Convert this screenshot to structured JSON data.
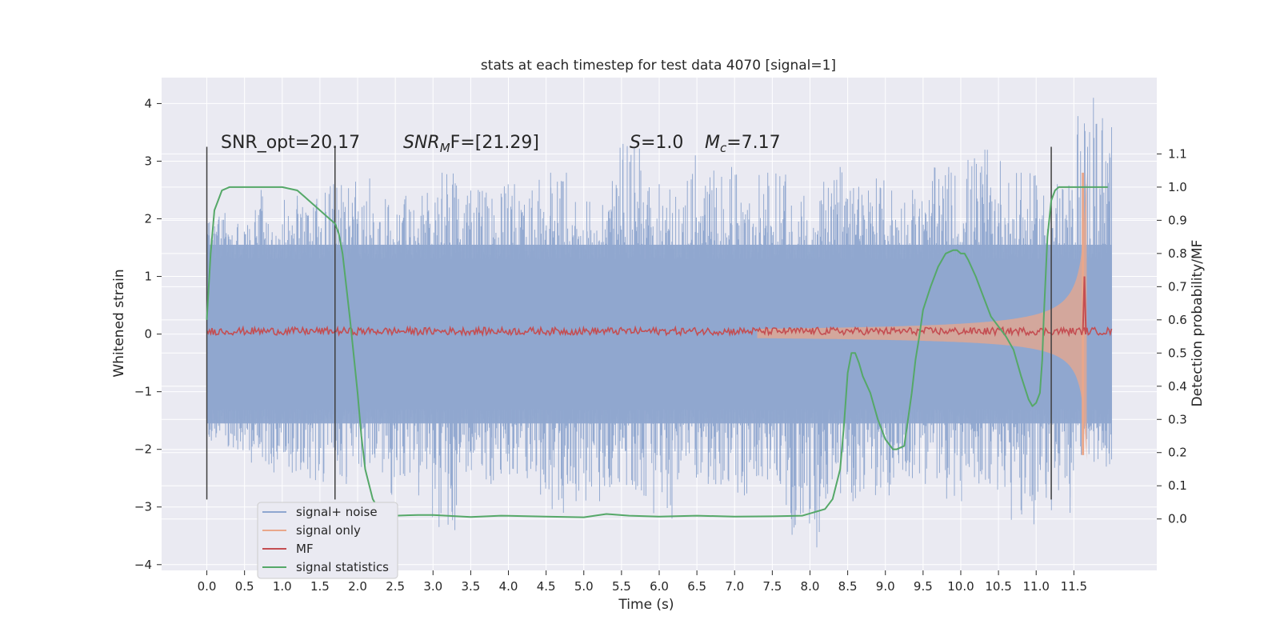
{
  "chart_data": {
    "type": "line",
    "title": "stats at each timestep for test data 4070 [signal=1]",
    "xlabel": "Time (s)",
    "ylabel": "Whitened strain",
    "y2label": "Detection probability/MF",
    "xlim": [
      -0.6,
      12.6
    ],
    "ylim": [
      -4.1,
      4.45
    ],
    "y2lim": [
      -0.155,
      1.33
    ],
    "xticks": [
      0.0,
      0.5,
      1.0,
      1.5,
      2.0,
      2.5,
      3.0,
      3.5,
      4.0,
      4.5,
      5.0,
      5.5,
      6.0,
      6.5,
      7.0,
      7.5,
      8.0,
      8.5,
      9.0,
      9.5,
      10.0,
      10.5,
      11.0,
      11.5
    ],
    "xtick_labels": [
      "0.0",
      "0.5",
      "1.0",
      "1.5",
      "2.0",
      "2.5",
      "3.0",
      "3.5",
      "4.0",
      "4.5",
      "5.0",
      "5.5",
      "6.0",
      "6.5",
      "7.0",
      "7.5",
      "8.0",
      "8.5",
      "9.0",
      "9.5",
      "10.0",
      "10.5",
      "11.0",
      "11.5"
    ],
    "yticks": [
      4,
      3,
      2,
      1,
      0,
      -1,
      -2,
      -3,
      -4
    ],
    "ytick_labels": [
      "4",
      "3",
      "2",
      "1",
      "0",
      "−1",
      "−2",
      "−3",
      "−4"
    ],
    "y2ticks": [
      1.1,
      1.0,
      0.9,
      0.8,
      0.7,
      0.6,
      0.5,
      0.4,
      0.3,
      0.2,
      0.1,
      0.0
    ],
    "y2tick_labels": [
      "1.1",
      "1.0",
      "0.9",
      "0.8",
      "0.7",
      "0.6",
      "0.5",
      "0.4",
      "0.3",
      "0.2",
      "0.1",
      "0.0"
    ],
    "grid": true,
    "legend_position": "lower-left",
    "annotations": {
      "snr_opt": "SNR_opt=20.17",
      "snr_mf_main": "SNR",
      "snr_mf_sub": "M",
      "snr_mf_rest": "F=[21.29]",
      "s_main": "S",
      "s_rest": "=1.0",
      "mc_main": "M",
      "mc_sub": "c",
      "mc_rest": "=7.17"
    },
    "vertical_lines_x": [
      0.0,
      1.7,
      11.2
    ],
    "vertical_lines_yrange": [
      -2.87,
      3.25
    ],
    "series": [
      {
        "name": "signal+ noise",
        "color": "#8fa6cf",
        "x_range": [
          0.0,
          12.0
        ],
        "envelope_upper": [
          2.1,
          2.5,
          2.4,
          2.6,
          2.7,
          2.4,
          2.8,
          2.5,
          2.6,
          2.8,
          2.3,
          3.3,
          2.6,
          3.1,
          2.9,
          2.8,
          2.4,
          2.9,
          2.7,
          2.5,
          2.9,
          3.2,
          2.8,
          2.6,
          4.1
        ],
        "envelope_lower": [
          -2.0,
          -2.4,
          -2.5,
          -2.6,
          -2.4,
          -2.8,
          -3.4,
          -2.6,
          -2.5,
          -3.1,
          -2.9,
          -2.7,
          -3.2,
          -2.6,
          -2.8,
          -2.6,
          -3.7,
          -2.9,
          -2.8,
          -2.6,
          -2.9,
          -2.7,
          -3.3,
          -3.1,
          -2.3
        ],
        "band": [
          -1.55,
          1.55
        ]
      },
      {
        "name": "signal only",
        "color": "#e9a78b",
        "chirp_start": 7.3,
        "chirp_end": 11.67,
        "amplitude_peak": 2.8
      },
      {
        "name": "MF",
        "color": "#c44e52",
        "baseline": 0.05,
        "spike_x": 11.64,
        "spike_value": 1.0
      },
      {
        "name": "signal statistics",
        "color": "#55a868",
        "axis": "right",
        "x": [
          0.0,
          0.05,
          0.1,
          0.15,
          0.2,
          0.3,
          0.5,
          0.8,
          1.0,
          1.2,
          1.3,
          1.4,
          1.5,
          1.6,
          1.7,
          1.75,
          1.8,
          1.85,
          1.9,
          2.0,
          2.05,
          2.1,
          2.2,
          2.3,
          2.5,
          2.8,
          3.0,
          3.5,
          3.9,
          4.5,
          5.0,
          5.3,
          5.6,
          6.0,
          6.5,
          7.0,
          7.5,
          7.9,
          8.2,
          8.3,
          8.4,
          8.45,
          8.5,
          8.55,
          8.6,
          8.65,
          8.7,
          8.8,
          8.9,
          9.0,
          9.1,
          9.15,
          9.25,
          9.3,
          9.35,
          9.4,
          9.45,
          9.5,
          9.6,
          9.7,
          9.8,
          9.9,
          9.95,
          10.0,
          10.05,
          10.1,
          10.2,
          10.3,
          10.4,
          10.5,
          10.6,
          10.7,
          10.8,
          10.9,
          10.95,
          11.0,
          11.05,
          11.08,
          11.1,
          11.15,
          11.2,
          11.25,
          11.3,
          11.4,
          11.5,
          11.6,
          11.8,
          11.95
        ],
        "y": [
          0.6,
          0.8,
          0.93,
          0.96,
          0.99,
          1.0,
          1.0,
          1.0,
          1.0,
          0.99,
          0.97,
          0.95,
          0.93,
          0.91,
          0.89,
          0.86,
          0.8,
          0.7,
          0.6,
          0.38,
          0.25,
          0.15,
          0.06,
          0.02,
          0.01,
          0.012,
          0.012,
          0.006,
          0.01,
          0.007,
          0.005,
          0.015,
          0.01,
          0.007,
          0.01,
          0.007,
          0.008,
          0.01,
          0.03,
          0.06,
          0.15,
          0.28,
          0.44,
          0.5,
          0.5,
          0.47,
          0.43,
          0.38,
          0.3,
          0.24,
          0.21,
          0.21,
          0.22,
          0.3,
          0.38,
          0.48,
          0.55,
          0.63,
          0.7,
          0.76,
          0.8,
          0.81,
          0.81,
          0.8,
          0.8,
          0.78,
          0.73,
          0.67,
          0.61,
          0.58,
          0.55,
          0.51,
          0.43,
          0.36,
          0.34,
          0.35,
          0.38,
          0.48,
          0.6,
          0.85,
          0.96,
          0.99,
          1.0,
          1.0,
          1.0,
          1.0,
          1.0,
          1.0
        ]
      }
    ]
  },
  "colors": {
    "plot_bg": "#eaeaf2",
    "grid": "#ffffff",
    "text": "#262626",
    "vline": "#3f3f3f"
  }
}
